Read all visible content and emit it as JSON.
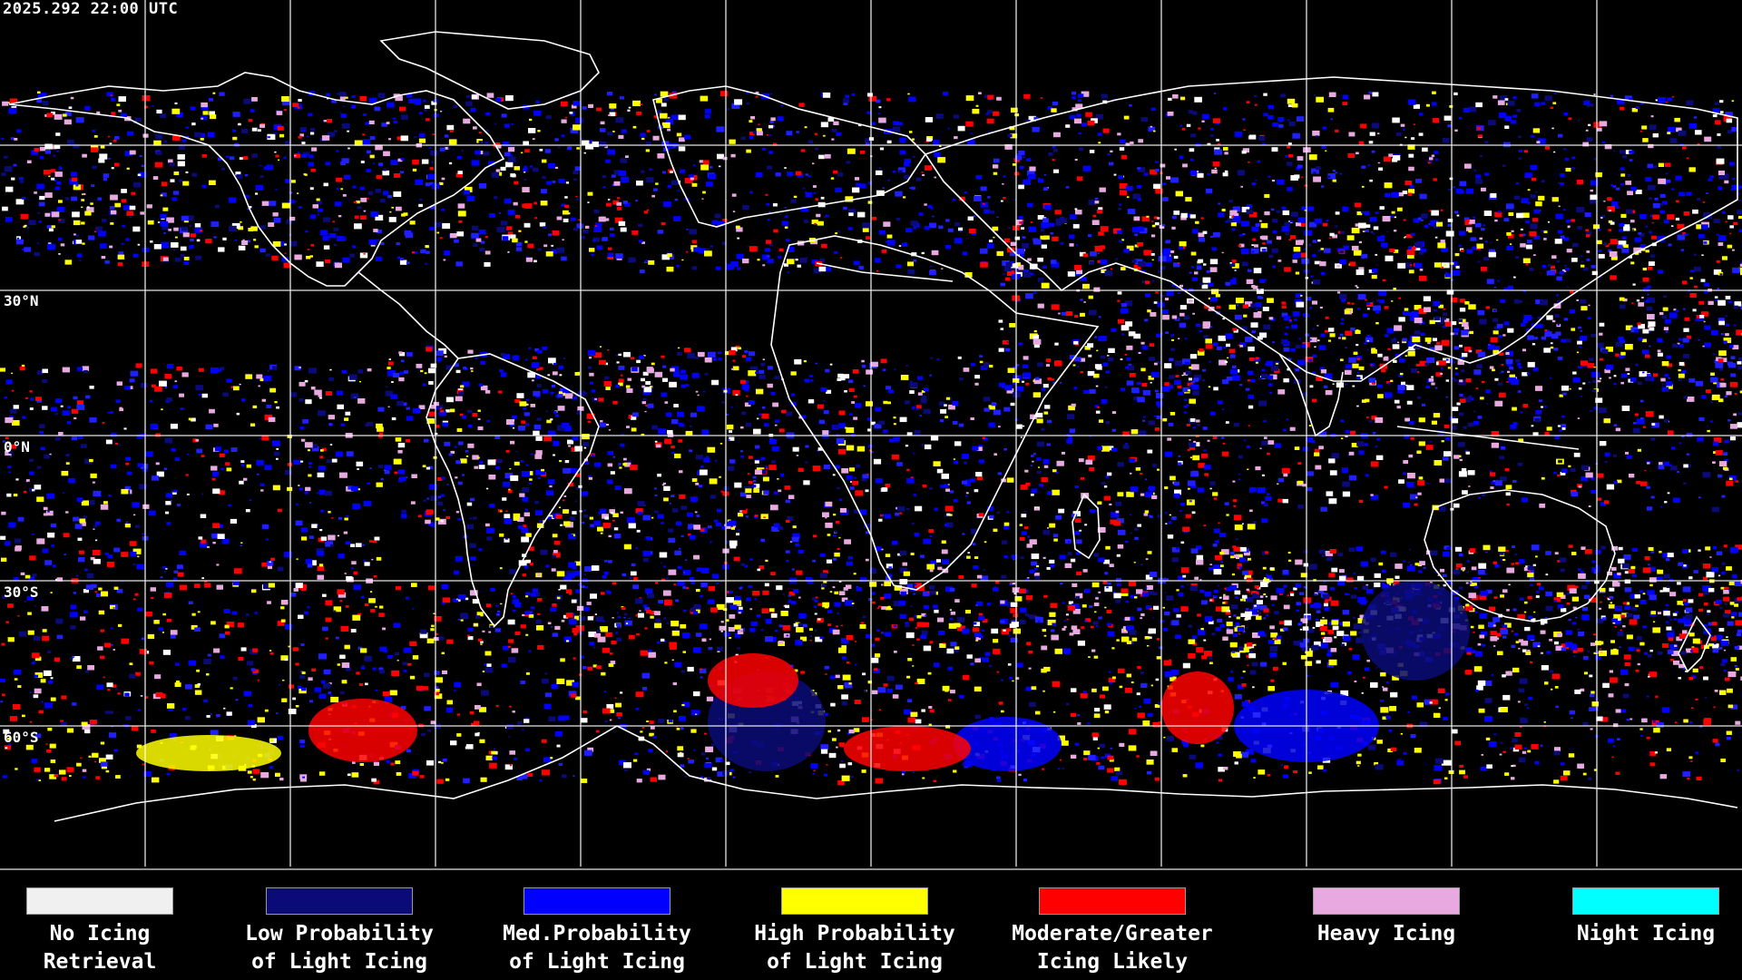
{
  "timestamp": "2025.292 22:00 UTC",
  "lat_labels": [
    "30°N",
    "0°N",
    "30°S",
    "60°S"
  ],
  "legend": [
    {
      "line1": "No Icing",
      "line2": "Retrieval",
      "color": "#f0f0f0"
    },
    {
      "line1": "Low Probability",
      "line2": "of Light Icing",
      "color": "#0a0a78"
    },
    {
      "line1": "Med.Probability",
      "line2": "of Light Icing",
      "color": "#0000ff"
    },
    {
      "line1": "High Probability",
      "line2": "of Light Icing",
      "color": "#ffff00"
    },
    {
      "line1": "Moderate/Greater",
      "line2": "Icing Likely",
      "color": "#ff0000"
    },
    {
      "line1": "Heavy Icing",
      "line2": "",
      "color": "#e8a8e0"
    },
    {
      "line1": "Night Icing",
      "line2": "",
      "color": "#00ffff"
    }
  ]
}
